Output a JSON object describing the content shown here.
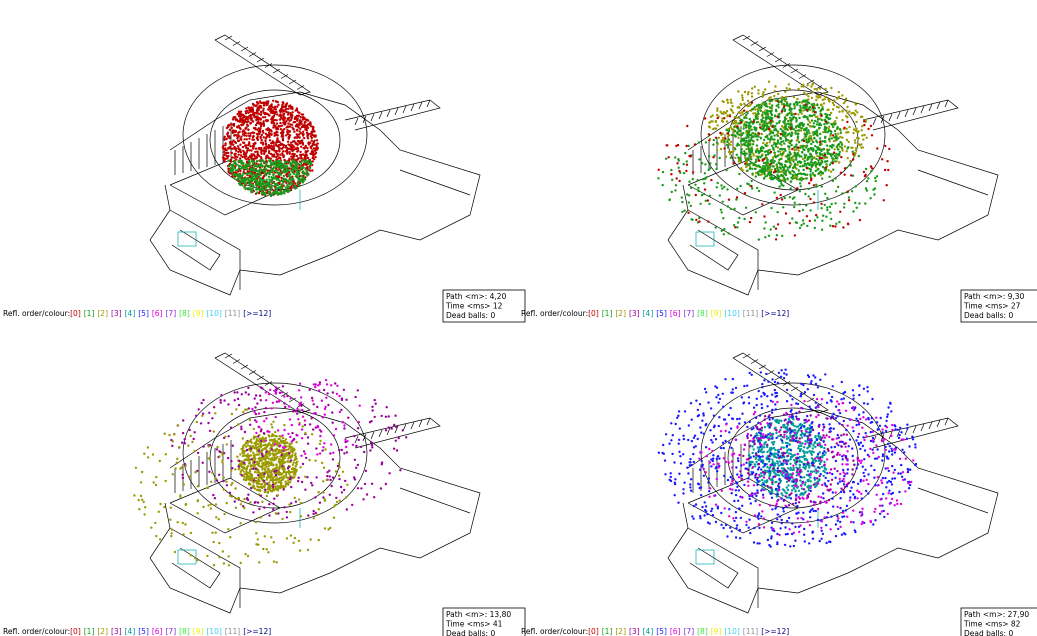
{
  "panels": [
    {
      "legend_label": "Refl. order/colour:",
      "legend": [
        {
          "label": "[0]",
          "color": "#c00000"
        },
        {
          "label": "[1]",
          "color": "#1a9a1a"
        },
        {
          "label": "[2]",
          "color": "#9a9a00"
        },
        {
          "label": "[3]",
          "color": "#9a009a"
        },
        {
          "label": "[4]",
          "color": "#009a9a"
        },
        {
          "label": "[5]",
          "color": "#1a1aff"
        },
        {
          "label": "[6]",
          "color": "#e000e0"
        },
        {
          "label": "[7]",
          "color": "#8a2be2"
        },
        {
          "label": "[8]",
          "color": "#40e040"
        },
        {
          "label": "[9]",
          "color": "#f0f000"
        },
        {
          "label": "[10]",
          "color": "#40d0f0"
        },
        {
          "label": "[11]",
          "color": "#909090"
        },
        {
          "label": "[>=12]",
          "color": "#000080"
        }
      ],
      "info": {
        "path": "Path <m>: 4,20",
        "time": "Time <ms> 12",
        "dead": "Dead balls: 0"
      }
    },
    {
      "legend_label": "Refl. order/colour:",
      "legend": [
        {
          "label": "[0]",
          "color": "#c00000"
        },
        {
          "label": "[1]",
          "color": "#1a9a1a"
        },
        {
          "label": "[2]",
          "color": "#9a9a00"
        },
        {
          "label": "[3]",
          "color": "#9a009a"
        },
        {
          "label": "[4]",
          "color": "#009a9a"
        },
        {
          "label": "[5]",
          "color": "#1a1aff"
        },
        {
          "label": "[6]",
          "color": "#e000e0"
        },
        {
          "label": "[7]",
          "color": "#8a2be2"
        },
        {
          "label": "[8]",
          "color": "#40e040"
        },
        {
          "label": "[9]",
          "color": "#f0f000"
        },
        {
          "label": "[10]",
          "color": "#40d0f0"
        },
        {
          "label": "[11]",
          "color": "#909090"
        },
        {
          "label": "[>=12]",
          "color": "#000080"
        }
      ],
      "info": {
        "path": "Path <m>: 9,30",
        "time": "Time <ms> 27",
        "dead": "Dead balls: 0"
      }
    },
    {
      "legend_label": "Refl. order/colour:",
      "legend": [
        {
          "label": "[0]",
          "color": "#c00000"
        },
        {
          "label": "[1]",
          "color": "#1a9a1a"
        },
        {
          "label": "[2]",
          "color": "#9a9a00"
        },
        {
          "label": "[3]",
          "color": "#9a009a"
        },
        {
          "label": "[4]",
          "color": "#009a9a"
        },
        {
          "label": "[5]",
          "color": "#1a1aff"
        },
        {
          "label": "[6]",
          "color": "#e000e0"
        },
        {
          "label": "[7]",
          "color": "#8a2be2"
        },
        {
          "label": "[8]",
          "color": "#40e040"
        },
        {
          "label": "[9]",
          "color": "#f0f000"
        },
        {
          "label": "[10]",
          "color": "#40d0f0"
        },
        {
          "label": "[11]",
          "color": "#909090"
        },
        {
          "label": "[>=12]",
          "color": "#000080"
        }
      ],
      "info": {
        "path": "Path <m>: 13,80",
        "time": "Time <ms> 41",
        "dead": "Dead balls: 0"
      }
    },
    {
      "legend_label": "Refl. order/colour:",
      "legend": [
        {
          "label": "[0]",
          "color": "#c00000"
        },
        {
          "label": "[1]",
          "color": "#1a9a1a"
        },
        {
          "label": "[2]",
          "color": "#9a9a00"
        },
        {
          "label": "[3]",
          "color": "#9a009a"
        },
        {
          "label": "[4]",
          "color": "#009a9a"
        },
        {
          "label": "[5]",
          "color": "#1a1aff"
        },
        {
          "label": "[6]",
          "color": "#e000e0"
        },
        {
          "label": "[7]",
          "color": "#8a2be2"
        },
        {
          "label": "[8]",
          "color": "#40e040"
        },
        {
          "label": "[9]",
          "color": "#f0f000"
        },
        {
          "label": "[10]",
          "color": "#40d0f0"
        },
        {
          "label": "[11]",
          "color": "#909090"
        },
        {
          "label": "[>=12]",
          "color": "#000080"
        }
      ],
      "info": {
        "path": "Path <m>: 27,90",
        "time": "Time <ms> 82",
        "dead": "Dead balls: 0"
      }
    }
  ]
}
